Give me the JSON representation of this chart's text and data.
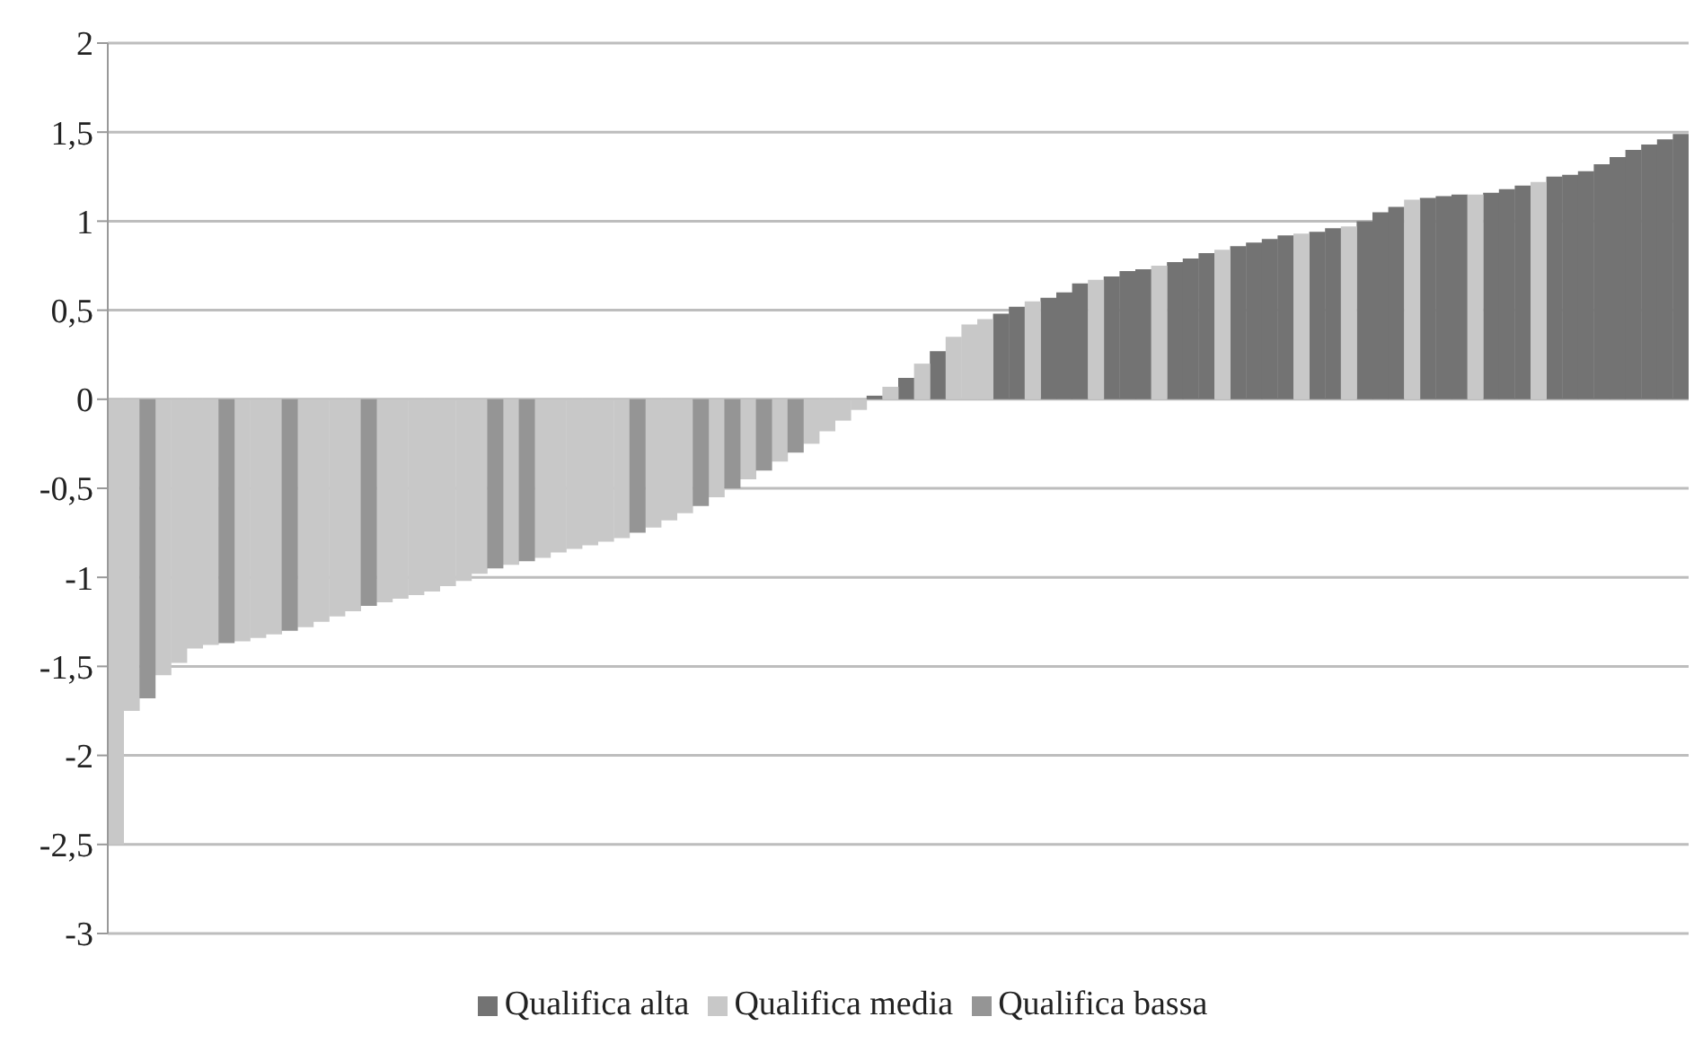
{
  "chart_data": {
    "type": "bar",
    "stacked": true,
    "categories": [
      null,
      null,
      null,
      null,
      null,
      null,
      null,
      null,
      null,
      null,
      null,
      null,
      null,
      null,
      null,
      null,
      null,
      null,
      null,
      null,
      null,
      null,
      null,
      null,
      null,
      null,
      null,
      null,
      null,
      null,
      null,
      null,
      null,
      null,
      null,
      null,
      null,
      null,
      null,
      null,
      null,
      null,
      null,
      null,
      null,
      null,
      null,
      null,
      null,
      null,
      null,
      null,
      null,
      null,
      null,
      null,
      null,
      null,
      null,
      null,
      null,
      null,
      null,
      null,
      null,
      null,
      null,
      null,
      null,
      null,
      null,
      null,
      null,
      null,
      null,
      null,
      null,
      null,
      null,
      null,
      null,
      null,
      null,
      null,
      null,
      null,
      null,
      null,
      null,
      null,
      null,
      null,
      null,
      null,
      null,
      null,
      null,
      null,
      null,
      null
    ],
    "series": [
      {
        "name": "Qualifica alta",
        "color": "#737373",
        "values": [
          null,
          null,
          null,
          null,
          null,
          null,
          null,
          null,
          null,
          null,
          null,
          null,
          null,
          null,
          null,
          null,
          null,
          null,
          null,
          null,
          null,
          null,
          null,
          null,
          null,
          null,
          null,
          null,
          null,
          null,
          null,
          null,
          null,
          null,
          null,
          null,
          null,
          null,
          null,
          null,
          null,
          null,
          null,
          null,
          null,
          null,
          null,
          null,
          0.02,
          null,
          0.12,
          null,
          0.27,
          null,
          null,
          null,
          0.48,
          0.52,
          null,
          0.57,
          0.6,
          0.65,
          null,
          0.69,
          0.72,
          0.73,
          null,
          0.77,
          0.79,
          0.82,
          null,
          0.86,
          0.88,
          0.9,
          0.92,
          null,
          0.94,
          0.96,
          null,
          1.0,
          1.05,
          1.08,
          null,
          1.13,
          1.14,
          1.15,
          null,
          1.16,
          1.18,
          1.2,
          null,
          1.25,
          1.26,
          1.28,
          1.32,
          1.36,
          1.4,
          1.43,
          1.46,
          1.49
        ]
      },
      {
        "name": "Qualifica media",
        "color": "#c8c8c8",
        "values": [
          -2.5,
          -1.75,
          null,
          -1.55,
          -1.48,
          -1.4,
          -1.38,
          null,
          -1.36,
          -1.34,
          -1.32,
          null,
          -1.28,
          -1.25,
          -1.22,
          -1.19,
          null,
          -1.14,
          -1.12,
          -1.1,
          -1.08,
          -1.05,
          -1.02,
          -0.98,
          null,
          -0.93,
          null,
          -0.89,
          -0.86,
          -0.84,
          -0.82,
          -0.8,
          -0.78,
          null,
          -0.72,
          -0.68,
          -0.64,
          null,
          -0.55,
          null,
          -0.45,
          null,
          -0.35,
          null,
          -0.25,
          -0.18,
          -0.12,
          -0.06,
          null,
          0.07,
          null,
          0.2,
          null,
          0.35,
          0.42,
          0.45,
          null,
          null,
          0.55,
          null,
          null,
          null,
          0.67,
          null,
          null,
          null,
          0.75,
          null,
          null,
          null,
          0.84,
          null,
          null,
          null,
          null,
          0.93,
          null,
          null,
          0.97,
          null,
          null,
          null,
          1.12,
          null,
          null,
          null,
          1.15,
          null,
          null,
          null,
          1.22,
          null,
          null,
          null,
          null,
          null,
          null,
          null,
          null,
          null
        ]
      },
      {
        "name": "Qualifica bassa",
        "color": "#959595",
        "values": [
          null,
          null,
          -1.68,
          null,
          null,
          null,
          null,
          -1.37,
          null,
          null,
          null,
          -1.3,
          null,
          null,
          null,
          null,
          -1.16,
          null,
          null,
          null,
          null,
          null,
          null,
          null,
          -0.95,
          null,
          -0.91,
          null,
          null,
          null,
          null,
          null,
          null,
          -0.75,
          null,
          null,
          null,
          -0.6,
          null,
          -0.5,
          null,
          -0.4,
          null,
          -0.3,
          null,
          null,
          null,
          null,
          null,
          null,
          null,
          null,
          null,
          null,
          null,
          null,
          null,
          null,
          null,
          null,
          null,
          null,
          null,
          null,
          null,
          null,
          null,
          null,
          null,
          null,
          null,
          null,
          null,
          null,
          null,
          null,
          null,
          null,
          null,
          null,
          null,
          null,
          null,
          null,
          null,
          null,
          null,
          null,
          null,
          null,
          null,
          null,
          null,
          null,
          null,
          null,
          null,
          null,
          null,
          null
        ]
      }
    ],
    "ylim": [
      -3,
      2
    ],
    "yticks": [
      {
        "value": -3,
        "label": "-3"
      },
      {
        "value": -2.5,
        "label": "-2,5"
      },
      {
        "value": -2,
        "label": "-2"
      },
      {
        "value": -1.5,
        "label": "-1,5"
      },
      {
        "value": -1,
        "label": "-1"
      },
      {
        "value": -0.5,
        "label": "-0,5"
      },
      {
        "value": 0,
        "label": "0"
      },
      {
        "value": 0.5,
        "label": "0,5"
      },
      {
        "value": 1,
        "label": "1"
      },
      {
        "value": 1.5,
        "label": "1,5"
      },
      {
        "value": 2,
        "label": "2"
      }
    ],
    "grid": "y",
    "legend": "bottom",
    "tick_labels": "y"
  }
}
